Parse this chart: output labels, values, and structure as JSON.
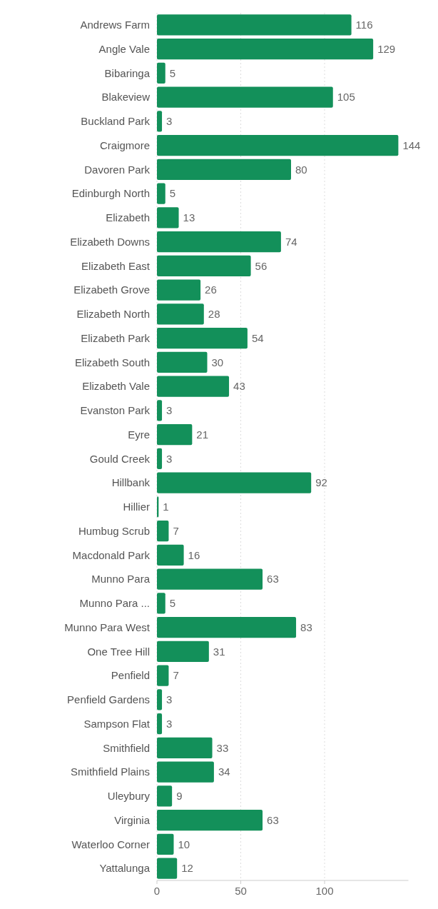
{
  "chart_data": {
    "type": "bar",
    "orientation": "horizontal",
    "categories": [
      "Andrews Farm",
      "Angle Vale",
      "Bibaringa",
      "Blakeview",
      "Buckland Park",
      "Craigmore",
      "Davoren Park",
      "Edinburgh North",
      "Elizabeth",
      "Elizabeth Downs",
      "Elizabeth East",
      "Elizabeth Grove",
      "Elizabeth North",
      "Elizabeth Park",
      "Elizabeth South",
      "Elizabeth Vale",
      "Evanston Park",
      "Eyre",
      "Gould Creek",
      "Hillbank",
      "Hillier",
      "Humbug Scrub",
      "Macdonald Park",
      "Munno Para",
      "Munno Para ...",
      "Munno Para West",
      "One Tree Hill",
      "Penfield",
      "Penfield Gardens",
      "Sampson Flat",
      "Smithfield",
      "Smithfield Plains",
      "Uleybury",
      "Virginia",
      "Waterloo Corner",
      "Yattalunga"
    ],
    "values": [
      116,
      129,
      5,
      105,
      3,
      144,
      80,
      5,
      13,
      74,
      56,
      26,
      28,
      54,
      30,
      43,
      3,
      21,
      3,
      92,
      1,
      7,
      16,
      63,
      5,
      83,
      31,
      7,
      3,
      3,
      33,
      34,
      9,
      63,
      10,
      12
    ],
    "color": "#13905a",
    "xlim": [
      0,
      150
    ],
    "xticks": [
      0,
      50,
      100
    ],
    "grid": "x",
    "data_labels": true
  }
}
